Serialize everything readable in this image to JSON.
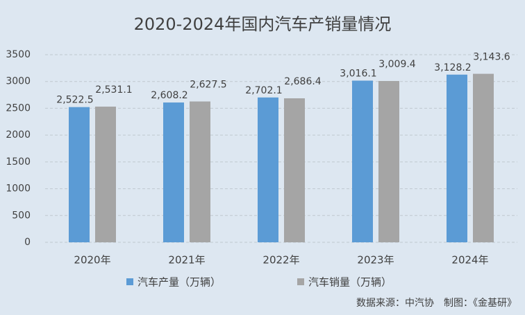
{
  "chart_data": {
    "type": "bar",
    "title": "2020-2024年国内汽车产销量情况",
    "categories": [
      "2020年",
      "2021年",
      "2022年",
      "2023年",
      "2024年"
    ],
    "series": [
      {
        "name": "汽车产量（万辆）",
        "color": "#5b9bd5",
        "values": [
          2522.5,
          2608.2,
          2702.1,
          3016.1,
          3128.2
        ],
        "value_labels": [
          "2,522.5",
          "2,608.2",
          "2,702.1",
          "3,016.1",
          "3,128.2"
        ]
      },
      {
        "name": "汽车销量（万辆）",
        "color": "#a5a5a5",
        "values": [
          2531.1,
          2627.5,
          2686.4,
          3009.4,
          3143.6
        ],
        "value_labels": [
          "2,531.1",
          "2,627.5",
          "2,686.4",
          "3,009.4",
          "3,143.6"
        ]
      }
    ],
    "ylim": [
      0,
      3500
    ],
    "yticks": [
      0,
      500,
      1000,
      1500,
      2000,
      2500,
      3000,
      3500
    ],
    "grid": true,
    "source": "数据来源：中汽协　制图：《金基研》"
  }
}
